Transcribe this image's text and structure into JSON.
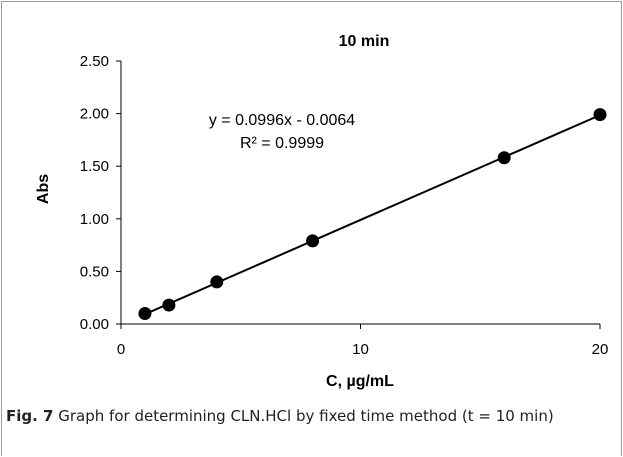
{
  "chart_data": {
    "type": "scatter",
    "title": "10 min",
    "xlabel": "C, µg/mL",
    "ylabel": "Abs",
    "xlim": [
      0,
      20
    ],
    "ylim": [
      0,
      2.5
    ],
    "x_ticks": [
      0,
      10,
      20
    ],
    "y_ticks": [
      "0.00",
      "0.50",
      "1.00",
      "1.50",
      "2.00",
      "2.50"
    ],
    "grid": false,
    "series": [
      {
        "x": [
          1,
          2,
          4,
          8,
          16,
          20
        ],
        "y": [
          0.1,
          0.18,
          0.4,
          0.79,
          1.58,
          1.99
        ]
      }
    ],
    "trendline": {
      "slope": 0.0996,
      "intercept": -0.0064
    },
    "annotations": [
      "y = 0.0996x - 0.0064",
      "R² = 0.9999"
    ],
    "colors": {
      "marker": "#000000",
      "line": "#000000"
    }
  },
  "caption": {
    "label": "Fig. 7",
    "text": "Graph for determining CLN.HCl by fixed time method (t = 10 min)"
  }
}
